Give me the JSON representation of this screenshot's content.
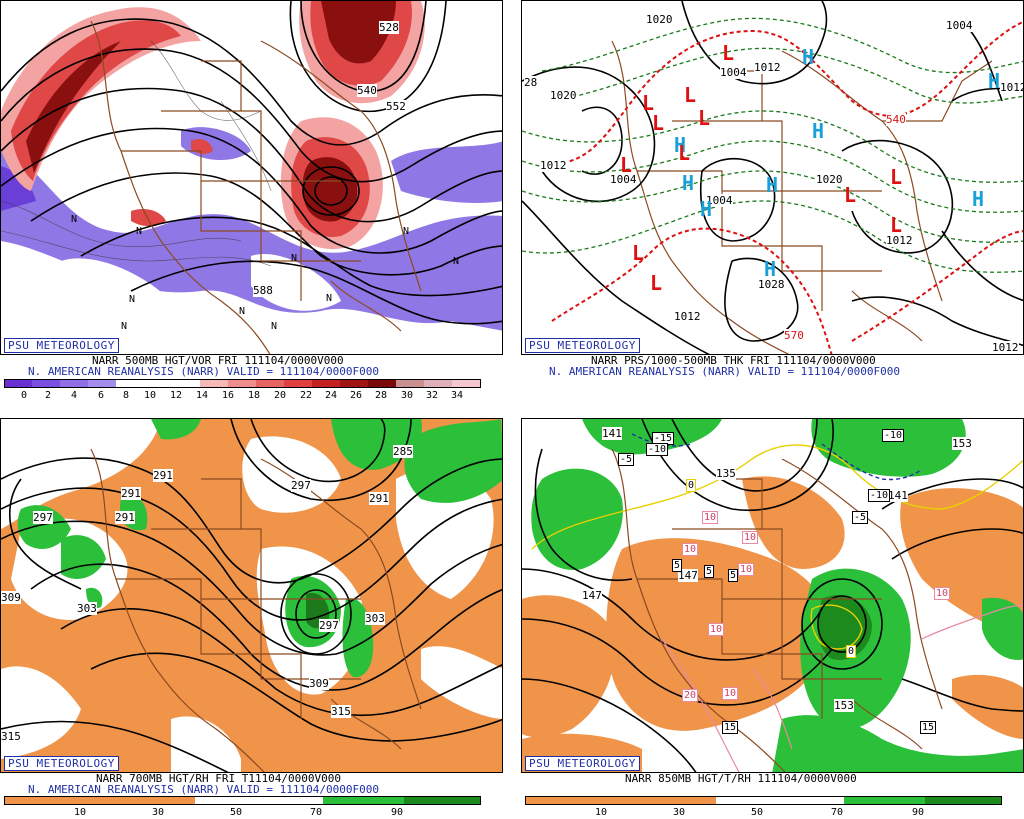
{
  "colors": {
    "vort_neg": "#7b5fe0",
    "vort_pos_light": "#f4a3a3",
    "vort_pos_mid": "#e04848",
    "vort_pos_dark": "#8a1010",
    "rh_dry": "#f0944a",
    "rh_moist": "#2bbf3a",
    "state_lines": "#8b4a22",
    "high_marker": "#1aa0d8",
    "low_marker": "#e01010",
    "thickness_line": "#1c7a1c",
    "thickness_540": "#dd1010",
    "badge_text": "#1f2fa8"
  },
  "panels": [
    {
      "id": "p500",
      "badge": "PSU METEOROLOGY",
      "caption_line1": "NARR 500MB HGT/VOR FRI 111104/0000V000",
      "caption_line2": "N. AMERICAN REANALYSIS (NARR) VALID = 111104/0000F000",
      "colorbar_labels": [
        "0",
        "2",
        "4",
        "6",
        "8",
        "10",
        "12",
        "14",
        "16",
        "18",
        "20",
        "22",
        "24",
        "26",
        "28",
        "30",
        "32",
        "34"
      ],
      "contour_labels": [
        "528",
        "540",
        "552",
        "588"
      ],
      "markers": [
        "N",
        "N",
        "N",
        "N",
        "N",
        "N",
        "N",
        "N",
        "N",
        "N"
      ]
    },
    {
      "id": "psfc",
      "badge": "PSU METEOROLOGY",
      "caption_line1": "NARR PRS/1000-500MB THK FRI 111104/0000V000",
      "caption_line2": "N. AMERICAN REANALYSIS (NARR) VALID = 111104/0000F000",
      "contour_labels": [
        "1020",
        "1020",
        "1012",
        "1004",
        "1004",
        "1012",
        "1020",
        "1028",
        "1012",
        "1004",
        "1012",
        "540",
        "570",
        "1004",
        "1012",
        "1012",
        "28"
      ],
      "highs": [
        "H",
        "H",
        "H",
        "H",
        "H",
        "H",
        "H",
        "H",
        "H"
      ],
      "lows": [
        "L",
        "L",
        "L",
        "L",
        "L",
        "L",
        "L",
        "L",
        "L",
        "L",
        "L",
        "L"
      ]
    },
    {
      "id": "p700",
      "badge": "PSU METEOROLOGY",
      "caption_line1": "NARR 700MB HGT/RH FRI T11104/0000V000",
      "caption_line2": "N. AMERICAN REANALYSIS (NARR) VALID = 111104/0000F000",
      "colorbar_labels": [
        "10",
        "30",
        "50",
        "70",
        "90"
      ],
      "contour_labels": [
        "291",
        "291",
        "291",
        "285",
        "297",
        "297",
        "291",
        "303",
        "297",
        "303",
        "309",
        "315",
        "315",
        "309"
      ]
    },
    {
      "id": "p850",
      "badge": "PSU METEOROLOGY",
      "caption_line1": "NARR 850MB HGT/T/RH 111104/0000V000",
      "caption_line2": "",
      "colorbar_labels": [
        "10",
        "30",
        "50",
        "70",
        "90"
      ],
      "contour_labels": [
        "135",
        "141",
        "147",
        "153",
        "153",
        "147",
        "141"
      ],
      "temp_labels": [
        "-15",
        "-10",
        "-5",
        "-10",
        "-10",
        "-5",
        "0",
        "5",
        "5",
        "5",
        "10",
        "10",
        "10",
        "10",
        "10",
        "10",
        "15",
        "15",
        "20",
        "10",
        "0"
      ]
    }
  ]
}
